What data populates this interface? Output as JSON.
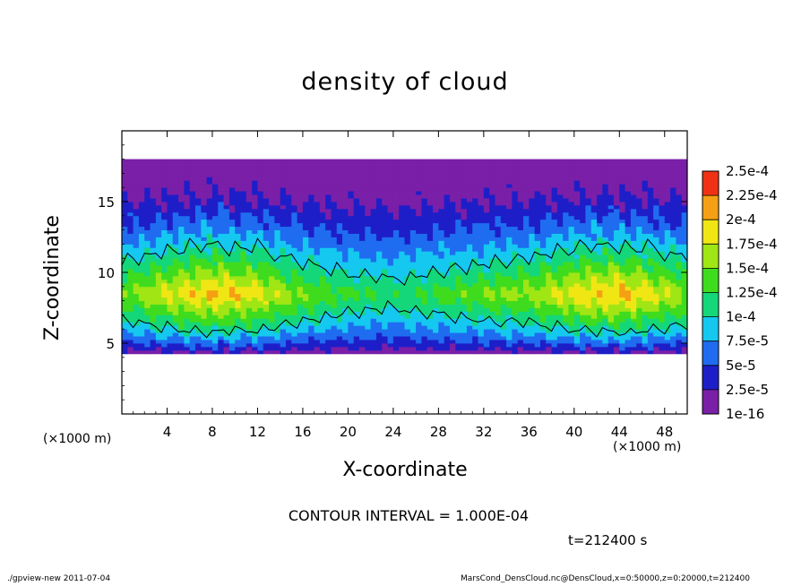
{
  "chart_data": {
    "type": "heatmap",
    "title": "density of cloud",
    "xlabel": "X-coordinate",
    "ylabel": "Z-coordinate",
    "x_unit_label": "(×1000 m)",
    "xlim": [
      0,
      50
    ],
    "ylim": [
      0,
      20
    ],
    "x_ticks": [
      4,
      8,
      12,
      16,
      20,
      24,
      28,
      32,
      36,
      40,
      44,
      48
    ],
    "y_ticks": [
      5,
      10,
      15
    ],
    "colorbar": {
      "levels": [
        "1e-16",
        "2.5e-5",
        "5e-5",
        "7.5e-5",
        "1e-4",
        "1.25e-4",
        "1.5e-4",
        "1.75e-4",
        "2e-4",
        "2.25e-4",
        "2.5e-4"
      ],
      "colors": [
        "#7a1fa8",
        "#1e1ec8",
        "#1f6cf0",
        "#14c8f0",
        "#14d77a",
        "#3fdc1e",
        "#a0e614",
        "#f0e614",
        "#f5a014",
        "#f03214",
        "#f5908c"
      ]
    },
    "contour_interval": "1.000E-04",
    "contour_level": 0.0001,
    "time": "t=212400 s",
    "profile_x": [
      0,
      4,
      8,
      12,
      16,
      20,
      24,
      28,
      32,
      36,
      40,
      44,
      48,
      50
    ],
    "profile_peak": [
      0.00015,
      0.00018,
      0.000205,
      0.00019,
      0.00015,
      0.00013,
      0.00012,
      0.000135,
      0.00015,
      0.00016,
      0.00019,
      0.000205,
      0.00018,
      0.00016
    ],
    "cloud_base_z": 4.2,
    "cloud_top_z": 18.0,
    "peak_z": 8.5
  },
  "notes": {
    "contour_text": "CONTOUR INTERVAL = 1.000E-04"
  },
  "footer": {
    "left": "./gpview-new  2011-07-04",
    "right": "MarsCond_DensCloud.nc@DensCloud,x=0:50000,z=0:20000,t=212400"
  }
}
